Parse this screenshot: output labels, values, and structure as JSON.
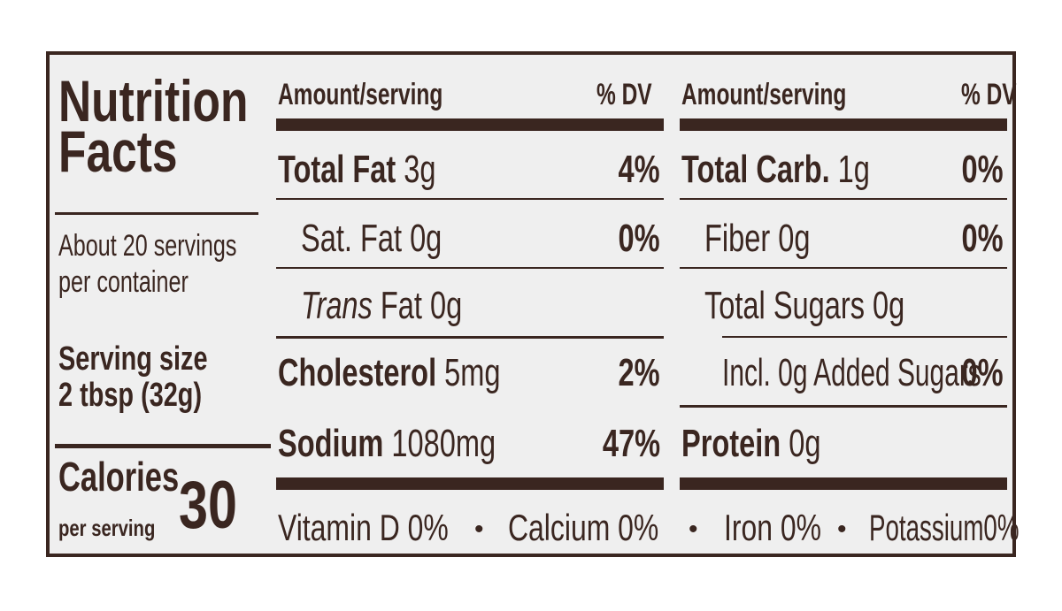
{
  "title": [
    "Nutrition",
    "Facts"
  ],
  "servings_per_container": [
    "About 20 servings",
    "per container"
  ],
  "serving_size": {
    "label": "Serving size",
    "value": "2 tbsp (32g)"
  },
  "calories": {
    "label": "Calories",
    "sublabel": "per serving",
    "value": "30"
  },
  "column_headers": {
    "amount": "Amount/serving",
    "dv": "% DV"
  },
  "left_nutrients": [
    {
      "name": "Total Fat",
      "amount": "3g",
      "dv": "4%"
    },
    {
      "name": "Sat. Fat",
      "amount": "0g",
      "dv": "0%"
    },
    {
      "name_italic": "Trans",
      "name": "Fat",
      "amount": "0g",
      "dv": ""
    },
    {
      "name": "Cholesterol",
      "amount": "5mg",
      "dv": "2%"
    },
    {
      "name": "Sodium",
      "amount": "1080mg",
      "dv": "47%"
    }
  ],
  "right_nutrients": [
    {
      "name": "Total Carb.",
      "amount": "1g",
      "dv": "0%"
    },
    {
      "name": "Fiber",
      "amount": "0g",
      "dv": "0%"
    },
    {
      "name": "Total Sugars",
      "amount": "0g",
      "dv": ""
    },
    {
      "name": "Incl. 0g Added Sugars",
      "amount": "",
      "dv": "0%"
    },
    {
      "name": "Protein",
      "amount": "0g",
      "dv": ""
    }
  ],
  "micronutrients": [
    {
      "name": "Vitamin D",
      "dv": "0%"
    },
    {
      "name": "Calcium",
      "dv": "0%"
    },
    {
      "name": "Iron",
      "dv": "0%"
    },
    {
      "name": "Potassium",
      "dv": "0%"
    }
  ],
  "separator": "•",
  "colors": {
    "ink": "#3a2620",
    "background": "#efefef"
  }
}
